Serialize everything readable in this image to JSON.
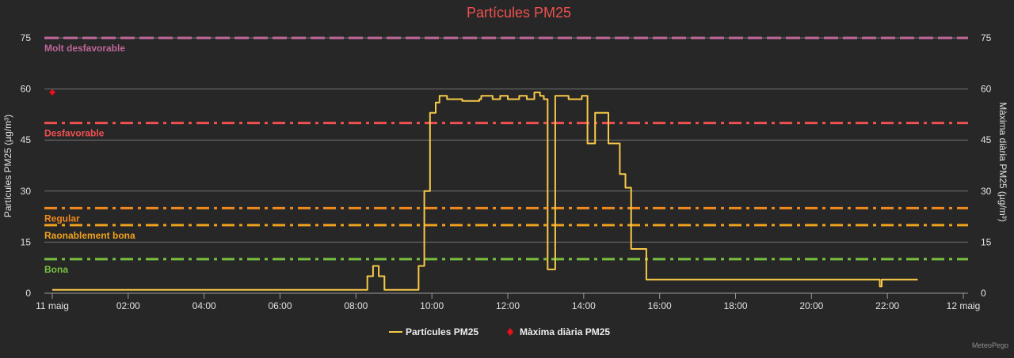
{
  "chart_data": {
    "type": "line",
    "title": "Partícules PM25",
    "y_axis_left": {
      "label": "Partícules PM25 (µg/m³)",
      "range": [
        0,
        75
      ],
      "ticks": [
        0,
        15,
        30,
        45,
        60,
        75
      ]
    },
    "y_axis_right": {
      "label": "Màxima diària PM25 (µg/m³)",
      "range": [
        0,
        75
      ],
      "ticks": [
        0,
        15,
        30,
        45,
        60,
        75
      ]
    },
    "x_axis": {
      "range_hours": [
        0,
        24
      ],
      "ticks": [
        {
          "hour": 0,
          "label": "11 maig"
        },
        {
          "hour": 2,
          "label": "02:00"
        },
        {
          "hour": 4,
          "label": "04:00"
        },
        {
          "hour": 6,
          "label": "06:00"
        },
        {
          "hour": 8,
          "label": "08:00"
        },
        {
          "hour": 10,
          "label": "10:00"
        },
        {
          "hour": 12,
          "label": "12:00"
        },
        {
          "hour": 14,
          "label": "14:00"
        },
        {
          "hour": 16,
          "label": "16:00"
        },
        {
          "hour": 18,
          "label": "18:00"
        },
        {
          "hour": 20,
          "label": "20:00"
        },
        {
          "hour": 22,
          "label": "22:00"
        },
        {
          "hour": 24,
          "label": "12 maig"
        }
      ]
    },
    "grid": true,
    "thresholds": [
      {
        "name": "Molt desfavorable",
        "value": 75,
        "color": "#c0679a",
        "style": "dash"
      },
      {
        "name": "Desfavorable",
        "value": 50,
        "color": "#f05050",
        "style": "dashdot"
      },
      {
        "name": "Regular",
        "value": 25,
        "color": "#f08a1e",
        "style": "dashdot"
      },
      {
        "name": "Raonablement bona",
        "value": 20,
        "color": "#f0a21e",
        "style": "dashdot"
      },
      {
        "name": "Bona",
        "value": 10,
        "color": "#78c040",
        "style": "dashdot"
      }
    ],
    "series": [
      {
        "name": "Partícules PM25",
        "color": "#f7c948",
        "step": true,
        "points": [
          [
            0,
            1
          ],
          [
            8.2,
            1
          ],
          [
            8.3,
            5
          ],
          [
            8.45,
            8
          ],
          [
            8.6,
            5
          ],
          [
            8.75,
            1
          ],
          [
            9.4,
            1
          ],
          [
            9.65,
            8
          ],
          [
            9.8,
            30
          ],
          [
            9.95,
            53
          ],
          [
            10.1,
            56
          ],
          [
            10.2,
            58
          ],
          [
            10.4,
            57
          ],
          [
            10.75,
            57
          ],
          [
            10.8,
            56.5
          ],
          [
            11.25,
            57
          ],
          [
            11.3,
            58
          ],
          [
            11.6,
            57
          ],
          [
            11.8,
            58
          ],
          [
            12.0,
            57
          ],
          [
            12.3,
            58
          ],
          [
            12.5,
            57
          ],
          [
            12.7,
            59
          ],
          [
            12.85,
            58
          ],
          [
            12.95,
            57
          ],
          [
            13.05,
            7
          ],
          [
            13.25,
            58
          ],
          [
            13.6,
            57
          ],
          [
            13.95,
            58
          ],
          [
            14.1,
            44
          ],
          [
            14.3,
            53
          ],
          [
            14.55,
            53
          ],
          [
            14.65,
            44
          ],
          [
            14.95,
            35
          ],
          [
            15.1,
            31
          ],
          [
            15.25,
            13
          ],
          [
            15.65,
            4
          ],
          [
            21.8,
            2
          ],
          [
            21.85,
            4
          ],
          [
            22.8,
            4
          ]
        ]
      },
      {
        "name": "Màxima diària PM25",
        "color": "#e8101a",
        "marker": "diamond",
        "points": [
          [
            0,
            59
          ]
        ]
      }
    ],
    "legend": {
      "placement": "bottom-center",
      "items": [
        "Partícules PM25",
        "Màxima diària PM25"
      ]
    }
  },
  "credits": "MeteoPego"
}
